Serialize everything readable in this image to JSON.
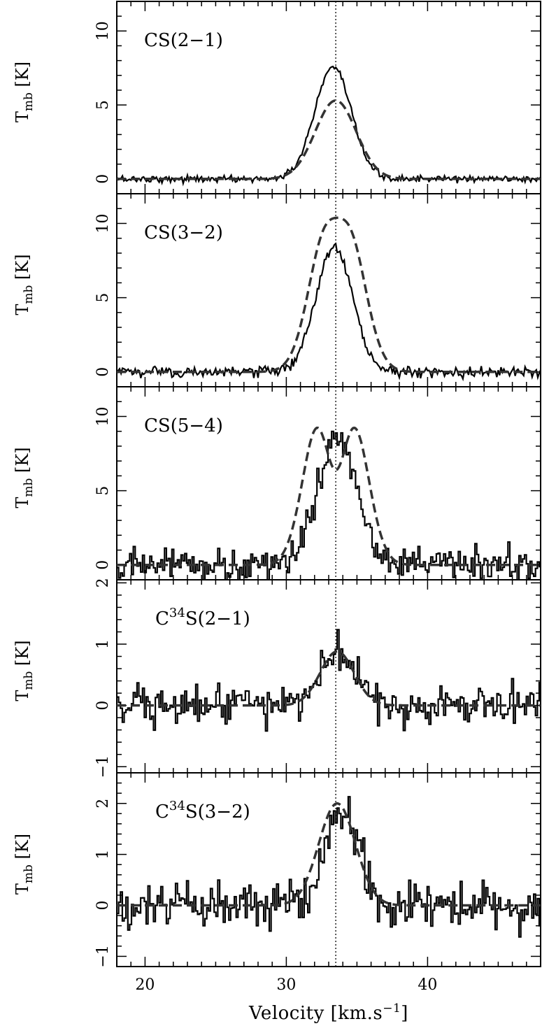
{
  "figure": {
    "xlabel_pre": "Velocity [km.s",
    "xlabel_sup": "−1",
    "xlabel_post": "]",
    "ylabel_main": "T",
    "ylabel_sub": "mb",
    "ylabel_unit": " [K]",
    "vline_velocity": 33.5,
    "colors": {
      "observed": "#000000",
      "model": "#333333",
      "vline": "#000000"
    }
  },
  "chart_data": [
    {
      "type": "line",
      "label_parts": [
        {
          "t": "CS(2−1)"
        }
      ],
      "xlim": [
        18,
        48
      ],
      "ylim": [
        -1,
        12
      ],
      "yticks": [
        0,
        5,
        10
      ],
      "xticks": [
        20,
        30,
        40
      ],
      "noise": 0.12,
      "series": [
        {
          "role": "observed",
          "style": "solid",
          "amplitude": 7.5,
          "center": 33.3,
          "sigma": 1.3
        },
        {
          "role": "model",
          "style": "dashed",
          "amplitude": 5.3,
          "center": 33.5,
          "sigma": 1.45
        }
      ]
    },
    {
      "type": "line",
      "label_parts": [
        {
          "t": "CS(3−2)"
        }
      ],
      "xlim": [
        18,
        48
      ],
      "ylim": [
        -1,
        12
      ],
      "yticks": [
        0,
        5,
        10
      ],
      "xticks": [
        20,
        30,
        40
      ],
      "noise": 0.18,
      "series": [
        {
          "role": "observed",
          "style": "solid",
          "amplitude": 8.4,
          "center": 33.4,
          "sigma": 1.3
        },
        {
          "role": "model",
          "style": "dashed-double",
          "amplitude": 8.8,
          "center": 33.6,
          "sigma": 1.3,
          "separation": 1.3
        }
      ]
    },
    {
      "type": "line",
      "label_parts": [
        {
          "t": "CS(5−4)"
        }
      ],
      "xlim": [
        18,
        48
      ],
      "ylim": [
        -1,
        12
      ],
      "yticks": [
        0,
        5,
        10
      ],
      "xticks": [
        20,
        30,
        40
      ],
      "noise": 0.55,
      "series": [
        {
          "role": "observed",
          "style": "steps",
          "amplitude": 8.7,
          "center": 33.6,
          "sigma": 1.4
        },
        {
          "role": "model",
          "style": "dashed-double",
          "amplitude": 10.0,
          "center": 33.5,
          "sigma": 1.15,
          "separation": 2.3
        }
      ]
    },
    {
      "type": "line",
      "label_parts": [
        {
          "t": "C"
        },
        {
          "t": "34",
          "sup": true
        },
        {
          "t": "S(2−1)"
        }
      ],
      "xlim": [
        18,
        48
      ],
      "ylim": [
        -1.1,
        2.05
      ],
      "yticks": [
        -1,
        0,
        1,
        2
      ],
      "xticks": [
        20,
        30,
        40
      ],
      "noise": 0.16,
      "series": [
        {
          "role": "observed",
          "style": "steps",
          "amplitude": 0.9,
          "center": 33.7,
          "sigma": 1.2
        },
        {
          "role": "model",
          "style": "dashed",
          "amplitude": 0.88,
          "center": 33.6,
          "sigma": 1.2
        }
      ]
    },
    {
      "type": "line",
      "label_parts": [
        {
          "t": "C"
        },
        {
          "t": "34",
          "sup": true
        },
        {
          "t": "S(3−2)"
        }
      ],
      "xlim": [
        18,
        48
      ],
      "ylim": [
        -1.2,
        2.6
      ],
      "yticks": [
        -1,
        0,
        1,
        2
      ],
      "xticks": [
        20,
        30,
        40
      ],
      "noise": 0.22,
      "series": [
        {
          "role": "observed",
          "style": "steps",
          "amplitude": 1.9,
          "center": 33.9,
          "sigma": 1.2
        },
        {
          "role": "model",
          "style": "dashed",
          "amplitude": 2.0,
          "center": 33.6,
          "sigma": 1.3
        }
      ]
    }
  ]
}
